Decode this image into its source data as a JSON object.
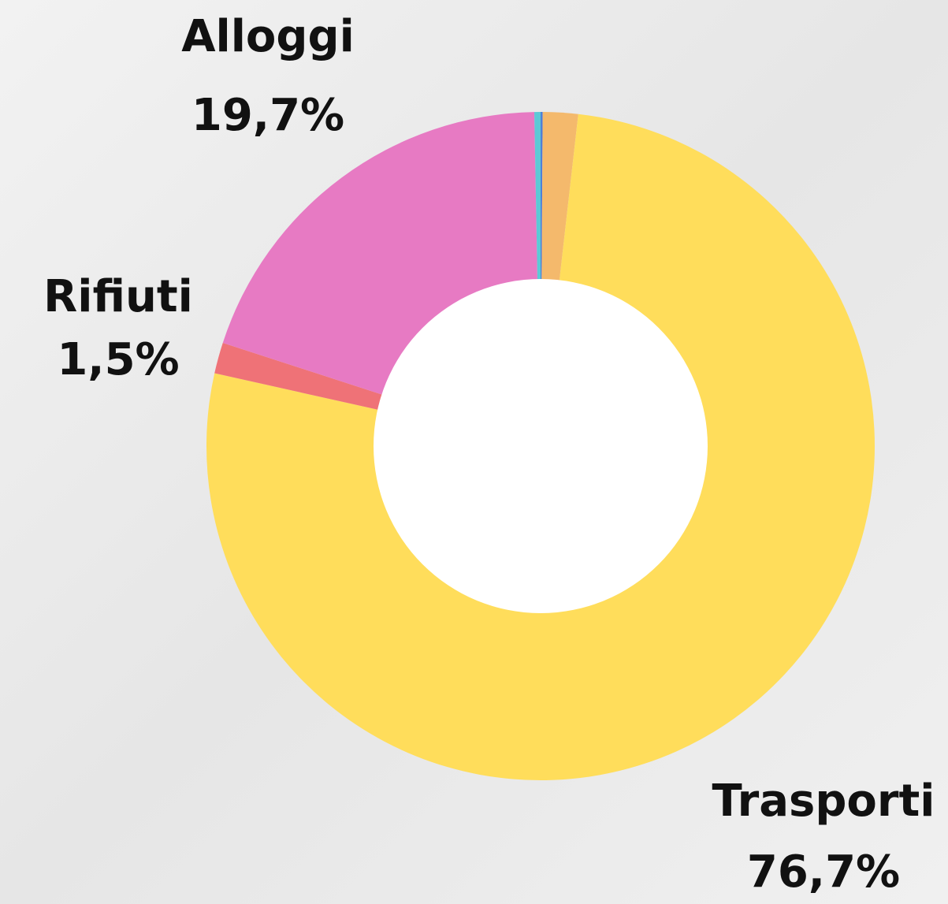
{
  "chart_data": {
    "type": "donut",
    "categories": [
      null,
      null,
      "Trasporti",
      "Rifiuti",
      "Alloggi",
      null
    ],
    "values": [
      0.1,
      1.7,
      76.7,
      1.5,
      19.7,
      0.3
    ],
    "value_labels": [
      null,
      null,
      "76,7%",
      "1,5%",
      "19,7%",
      null
    ],
    "colors": [
      "#4f7fd8",
      "#f4b96c",
      "#ffdd5b",
      "#ef7277",
      "#e77ac3",
      "#5cc9d6"
    ]
  }
}
